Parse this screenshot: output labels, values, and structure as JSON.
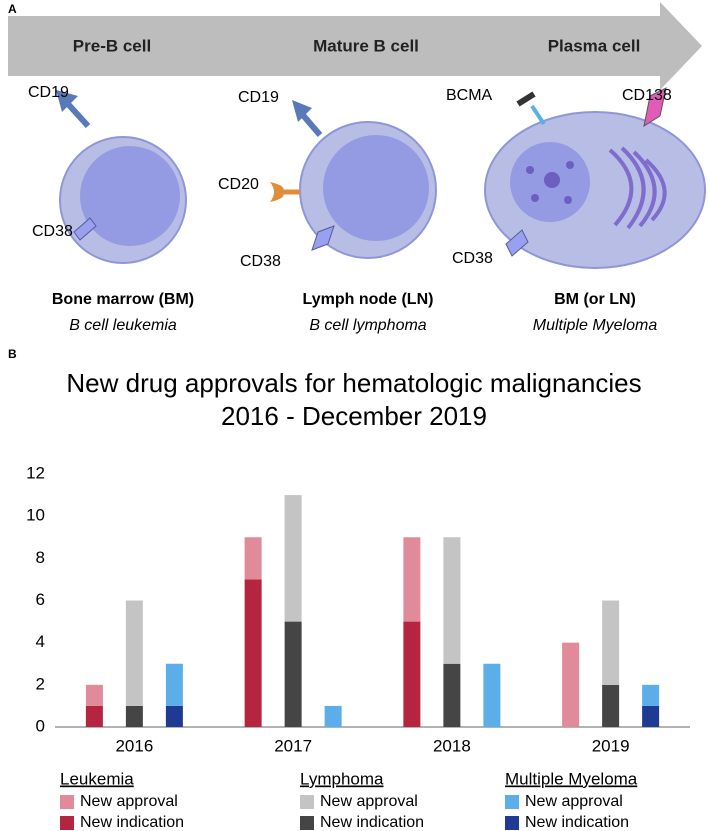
{
  "panel_a": {
    "label": "A",
    "stages": [
      "Pre-B cell",
      "Mature B cell",
      "Plasma cell"
    ],
    "markers": [
      "CD19",
      "CD38",
      "CD19",
      "CD20",
      "CD38",
      "BCMA",
      "CD138",
      "CD38"
    ],
    "locations": [
      "Bone marrow (BM)",
      "Lymph node (LN)",
      "BM (or LN)"
    ],
    "diseases": [
      "B cell leukemia",
      "B cell lymphoma",
      "Multiple Myeloma"
    ]
  },
  "panel_b_label": "B",
  "chart_data": {
    "type": "stacked-grouped-bar",
    "title": "New drug approvals for hematologic malignancies",
    "subtitle": "2016 - December 2019",
    "categories": [
      "2016",
      "2017",
      "2018",
      "2019"
    ],
    "groups": [
      {
        "name": "Leukemia",
        "series": [
          {
            "name": "New indication",
            "color": "#b5253f",
            "values": [
              1,
              7,
              5,
              0
            ]
          },
          {
            "name": "New approval",
            "color": "#e08a9a",
            "values": [
              1,
              2,
              4,
              4
            ]
          }
        ]
      },
      {
        "name": "Lymphoma",
        "series": [
          {
            "name": "New indication",
            "color": "#454545",
            "values": [
              1,
              5,
              3,
              2
            ]
          },
          {
            "name": "New approval",
            "color": "#c4c4c4",
            "values": [
              5,
              6,
              6,
              4
            ]
          }
        ]
      },
      {
        "name": "Multiple Myeloma",
        "series": [
          {
            "name": "New indication",
            "color": "#1f3a93",
            "values": [
              1,
              0,
              0,
              1
            ]
          },
          {
            "name": "New approval",
            "color": "#5baee8",
            "values": [
              2,
              1,
              3,
              1
            ]
          }
        ]
      }
    ],
    "ylim": [
      0,
      12
    ],
    "yticks": [
      0,
      2,
      4,
      6,
      8,
      10,
      12
    ],
    "grid": false
  }
}
